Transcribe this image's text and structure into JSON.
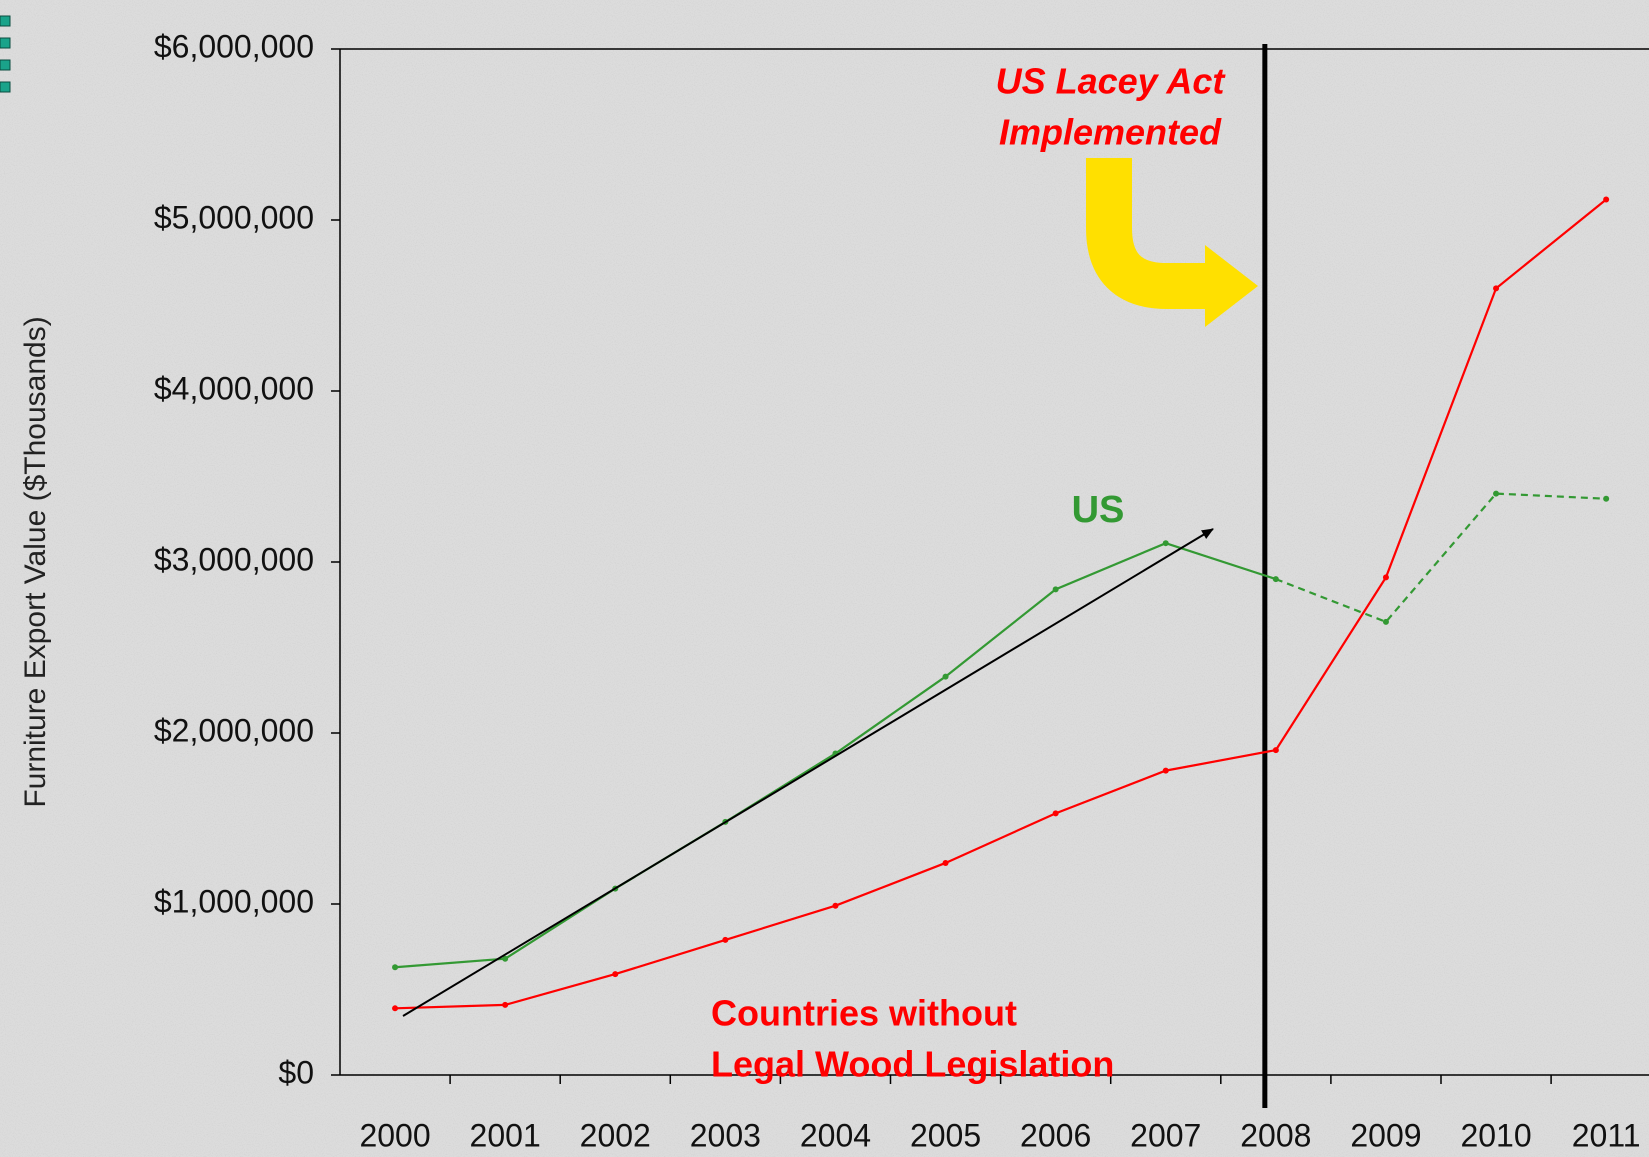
{
  "chart_data": {
    "type": "line",
    "y_label": "Furniture Export Value ($Thousands)",
    "categories": [
      "2000",
      "2001",
      "2002",
      "2003",
      "2004",
      "2005",
      "2006",
      "2007",
      "2008",
      "2009",
      "2010",
      "2011"
    ],
    "series": [
      {
        "name": "US",
        "color": "#339933",
        "dashed_from": 8,
        "values": [
          630000,
          680000,
          1090000,
          1480000,
          1880000,
          2330000,
          2840000,
          3110000,
          2900000,
          2650000,
          3400000,
          3370000
        ]
      },
      {
        "name": [
          "Countries without",
          "Legal Wood Legislation"
        ],
        "color": "#ff0000",
        "values": [
          390000,
          410000,
          590000,
          790000,
          990000,
          1240000,
          1530000,
          1780000,
          1900000,
          2910000,
          4600000,
          5120000
        ]
      }
    ],
    "ylim": [
      0,
      6000000
    ],
    "yticks": [
      {
        "value": 0,
        "label": "$0"
      },
      {
        "value": 1000000,
        "label": "$1,000,000"
      },
      {
        "value": 2000000,
        "label": "$2,000,000"
      },
      {
        "value": 3000000,
        "label": "$3,000,000"
      },
      {
        "value": 4000000,
        "label": "$4,000,000"
      },
      {
        "value": 5000000,
        "label": "$5,000,000"
      },
      {
        "value": 6000000,
        "label": "$6,000,000"
      }
    ],
    "annotation": {
      "lines": [
        "US Lacey Act",
        "Implemented"
      ],
      "category": 8
    }
  }
}
